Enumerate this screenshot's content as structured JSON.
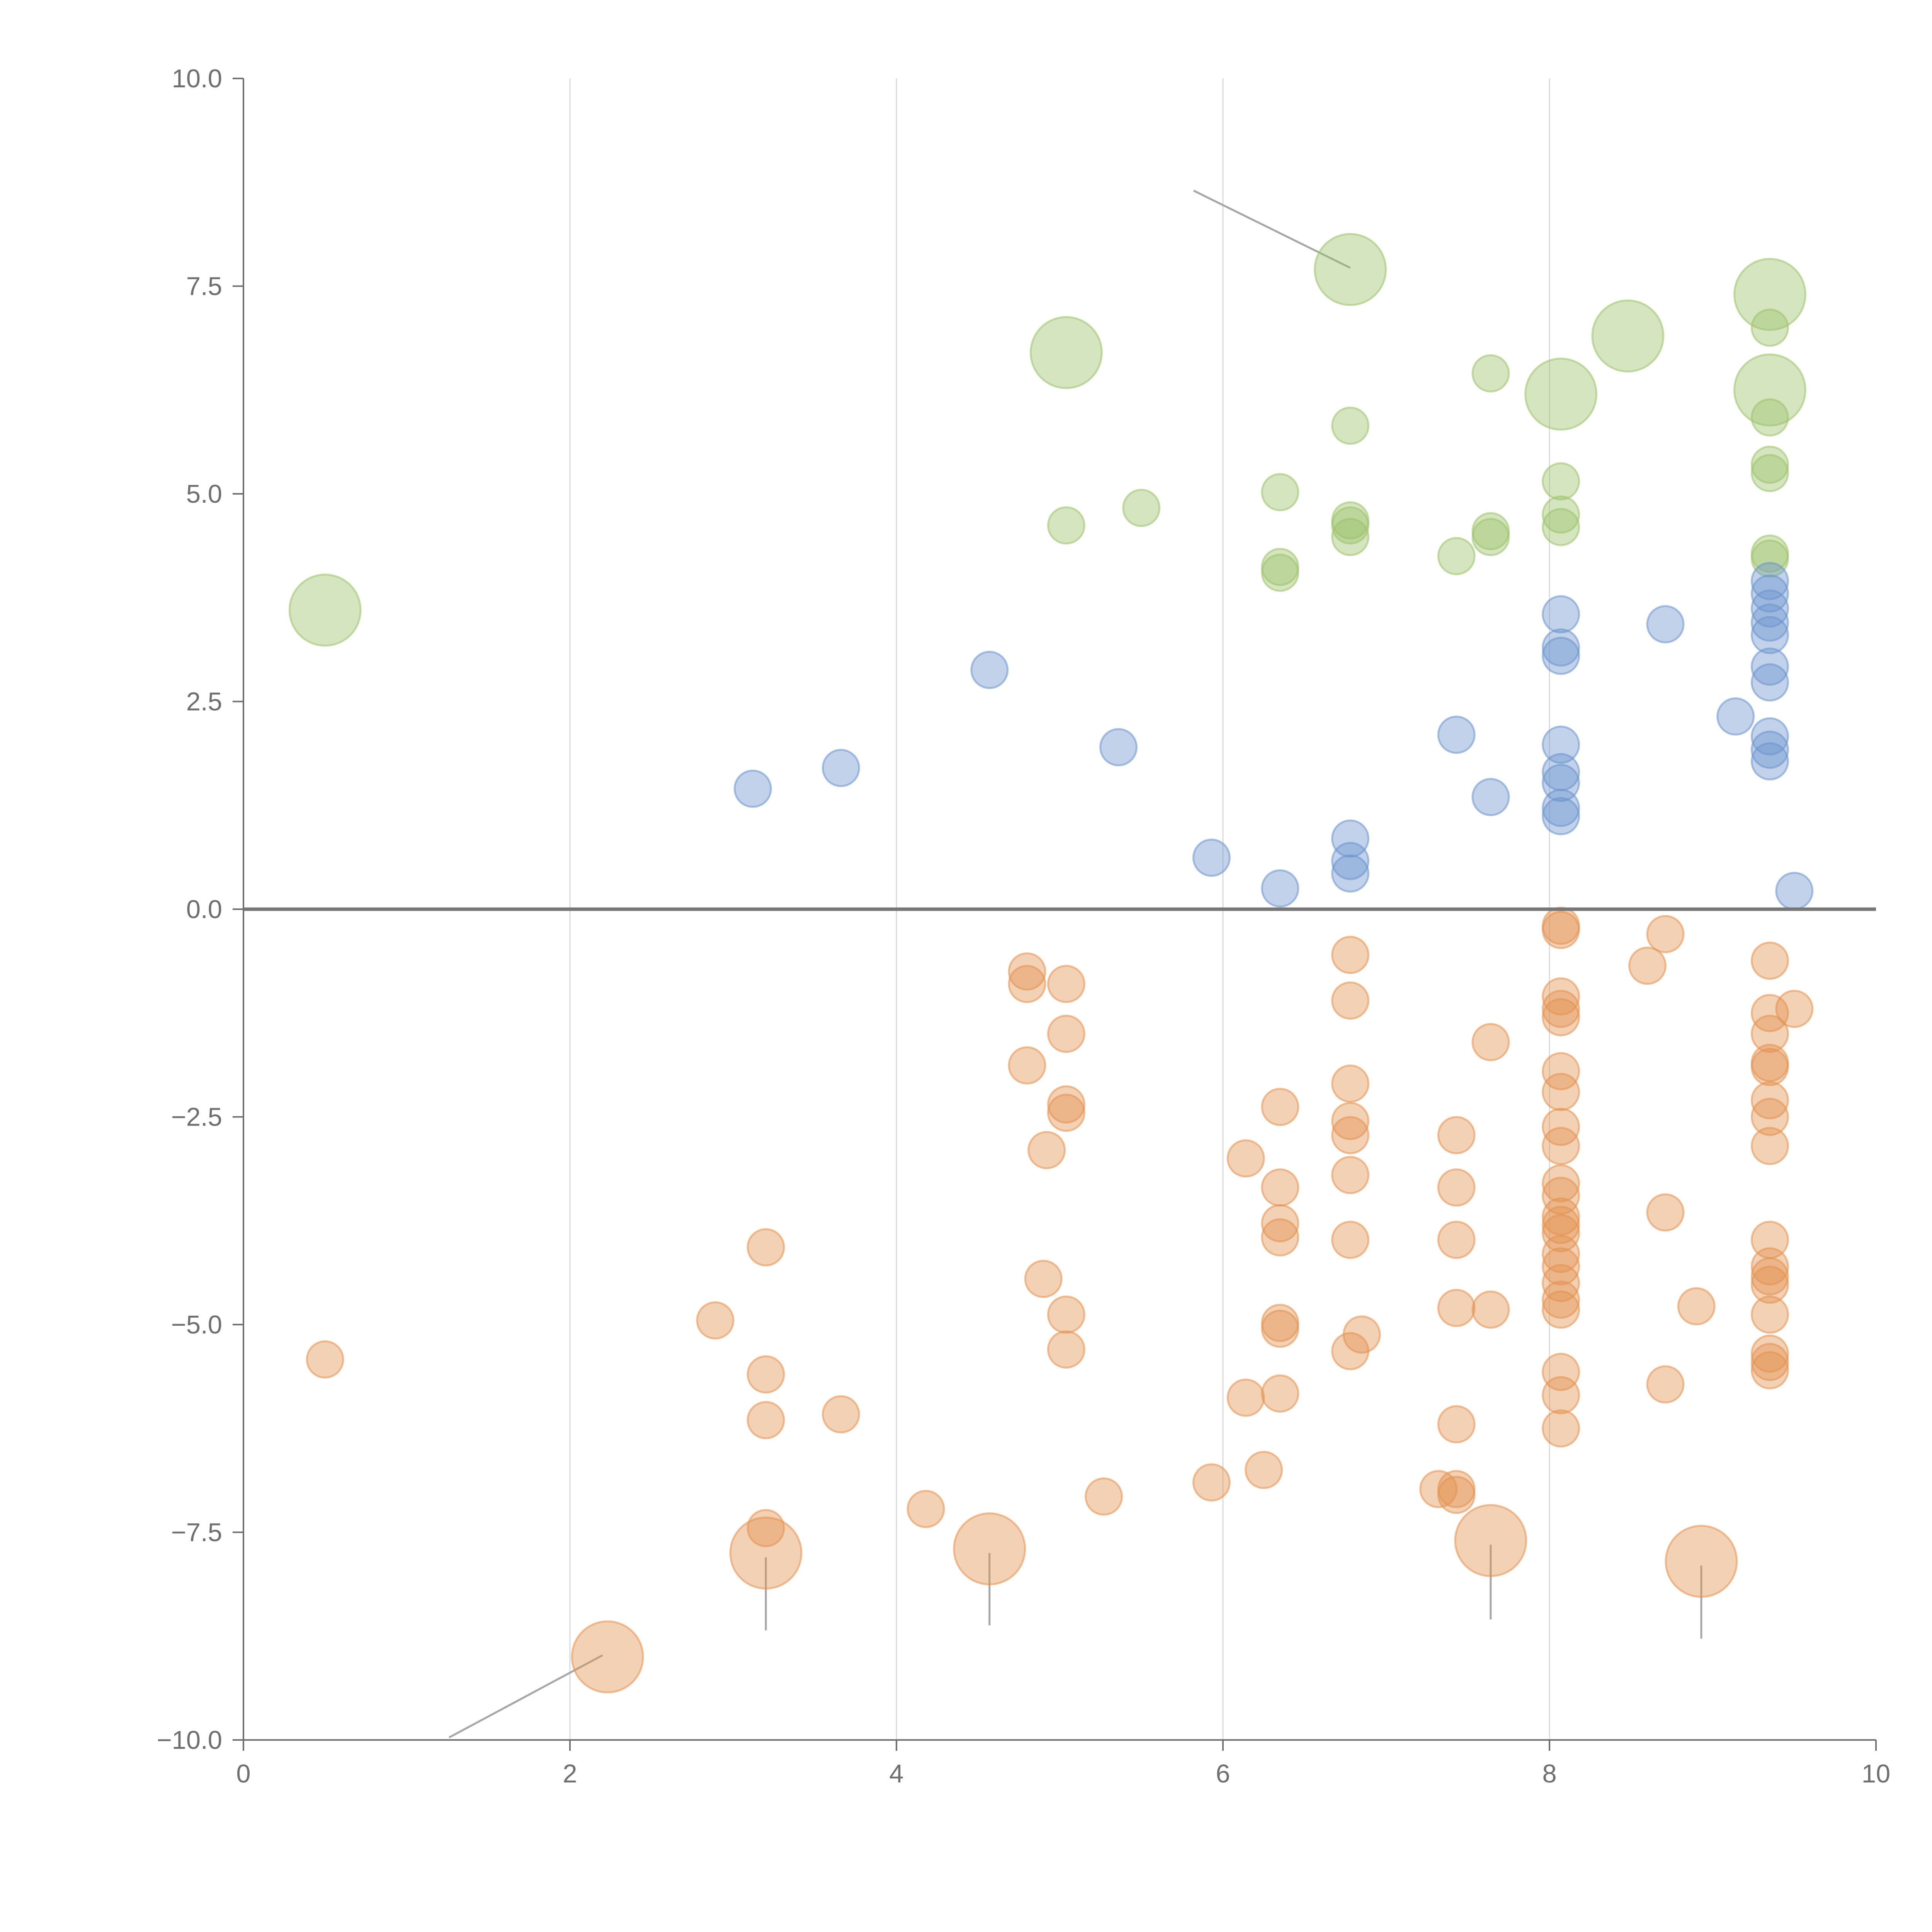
{
  "chart_data": {
    "type": "scatter",
    "title": "",
    "xlabel": "",
    "ylabel": "",
    "xlim": [
      0,
      10
    ],
    "ylim": [
      -10,
      10
    ],
    "x_ticks": [
      "0",
      "2",
      "4",
      "6",
      "8",
      "10"
    ],
    "y_ticks": [
      "10.0",
      "7.5",
      "5.0",
      "2.5",
      "0.0",
      "−2.5",
      "−5.0",
      "−7.5",
      "−10.0"
    ],
    "x_tick_values": [
      0,
      2,
      4,
      6,
      8,
      10
    ],
    "y_tick_values": [
      10,
      7.5,
      5,
      2.5,
      0,
      -2.5,
      -5,
      -7.5,
      -10
    ],
    "grid": "vertical",
    "reference_line_y": 0,
    "colors": {
      "green": "#9cc26a",
      "blue": "#6b93cc",
      "orange": "#e3924f",
      "axis": "#6f6f6f",
      "grid": "#d9d9d9",
      "leader": "#a6a6a6"
    },
    "series": [
      {
        "name": "green",
        "color": "#9cc26a",
        "points": [
          [
            0.5,
            3.6,
            2
          ],
          [
            6.78,
            7.7,
            2
          ],
          [
            5.04,
            6.7,
            2
          ],
          [
            8.48,
            6.9,
            2
          ],
          [
            9.35,
            7.4,
            2
          ],
          [
            8.07,
            6.2,
            2
          ],
          [
            9.35,
            6.25,
            2
          ],
          [
            9.35,
            7.0,
            1
          ],
          [
            7.64,
            6.45,
            1
          ],
          [
            6.78,
            5.82,
            1
          ],
          [
            9.35,
            5.92,
            1
          ],
          [
            8.07,
            5.15,
            1
          ],
          [
            9.35,
            5.35,
            1
          ],
          [
            9.35,
            5.25,
            1
          ],
          [
            6.35,
            5.02,
            1
          ],
          [
            5.5,
            4.83,
            1
          ],
          [
            8.07,
            4.75,
            1
          ],
          [
            6.78,
            4.68,
            1
          ],
          [
            6.78,
            4.62,
            1
          ],
          [
            5.04,
            4.62,
            1
          ],
          [
            8.07,
            4.6,
            1
          ],
          [
            7.64,
            4.55,
            1
          ],
          [
            7.64,
            4.48,
            1
          ],
          [
            6.78,
            4.48,
            1
          ],
          [
            9.35,
            4.28,
            1
          ],
          [
            9.35,
            4.22,
            1
          ],
          [
            7.43,
            4.25,
            1
          ],
          [
            6.35,
            4.12,
            1
          ],
          [
            6.35,
            4.05,
            1
          ]
        ]
      },
      {
        "name": "blue",
        "color": "#6b93cc",
        "points": [
          [
            9.35,
            3.95,
            1
          ],
          [
            9.35,
            3.8,
            1
          ],
          [
            9.35,
            3.62,
            1
          ],
          [
            8.07,
            3.55,
            1
          ],
          [
            9.35,
            3.45,
            1
          ],
          [
            8.71,
            3.43,
            1
          ],
          [
            9.35,
            3.3,
            1
          ],
          [
            8.07,
            3.15,
            1
          ],
          [
            8.07,
            3.05,
            1
          ],
          [
            9.35,
            2.92,
            1
          ],
          [
            4.57,
            2.88,
            1
          ],
          [
            9.35,
            2.73,
            1
          ],
          [
            9.14,
            2.32,
            1
          ],
          [
            7.43,
            2.1,
            1
          ],
          [
            9.35,
            2.08,
            1
          ],
          [
            8.07,
            1.98,
            1
          ],
          [
            5.36,
            1.95,
            1
          ],
          [
            9.35,
            1.92,
            1
          ],
          [
            9.35,
            1.78,
            1
          ],
          [
            3.66,
            1.7,
            1
          ],
          [
            8.07,
            1.65,
            1
          ],
          [
            8.07,
            1.52,
            1
          ],
          [
            3.12,
            1.45,
            1
          ],
          [
            7.64,
            1.35,
            1
          ],
          [
            8.07,
            1.22,
            1
          ],
          [
            8.07,
            1.12,
            1
          ],
          [
            6.78,
            0.85,
            1
          ],
          [
            5.93,
            0.62,
            1
          ],
          [
            6.78,
            0.58,
            1
          ],
          [
            6.78,
            0.43,
            1
          ],
          [
            6.35,
            0.25,
            1
          ],
          [
            9.5,
            0.22,
            1
          ]
        ]
      },
      {
        "name": "orange",
        "color": "#e3924f",
        "points": [
          [
            2.23,
            -9.0,
            2
          ],
          [
            3.2,
            -7.75,
            2
          ],
          [
            4.57,
            -7.7,
            2
          ],
          [
            7.64,
            -7.6,
            2
          ],
          [
            8.93,
            -7.85,
            2
          ],
          [
            8.07,
            -0.2,
            1
          ],
          [
            8.07,
            -0.25,
            1
          ],
          [
            8.71,
            -0.3,
            1
          ],
          [
            9.35,
            -0.62,
            1
          ],
          [
            6.78,
            -0.55,
            1
          ],
          [
            8.6,
            -0.68,
            1
          ],
          [
            4.8,
            -0.75,
            1
          ],
          [
            4.8,
            -0.9,
            1
          ],
          [
            5.04,
            -0.9,
            1
          ],
          [
            8.07,
            -1.05,
            1
          ],
          [
            8.07,
            -1.2,
            1
          ],
          [
            9.5,
            -1.2,
            1
          ],
          [
            9.35,
            -1.25,
            1
          ],
          [
            8.07,
            -1.3,
            1
          ],
          [
            6.78,
            -1.1,
            1
          ],
          [
            5.04,
            -1.5,
            1
          ],
          [
            9.35,
            -1.5,
            1
          ],
          [
            7.64,
            -1.6,
            1
          ],
          [
            9.35,
            -1.85,
            1
          ],
          [
            4.8,
            -1.88,
            1
          ],
          [
            9.35,
            -1.9,
            1
          ],
          [
            8.07,
            -1.95,
            1
          ],
          [
            6.78,
            -2.1,
            1
          ],
          [
            8.07,
            -2.2,
            1
          ],
          [
            9.35,
            -2.3,
            1
          ],
          [
            5.04,
            -2.35,
            1
          ],
          [
            6.35,
            -2.38,
            1
          ],
          [
            5.04,
            -2.45,
            1
          ],
          [
            6.78,
            -2.55,
            1
          ],
          [
            9.35,
            -2.5,
            1
          ],
          [
            8.07,
            -2.62,
            1
          ],
          [
            6.78,
            -2.72,
            1
          ],
          [
            7.43,
            -2.72,
            1
          ],
          [
            8.07,
            -2.85,
            1
          ],
          [
            9.35,
            -2.85,
            1
          ],
          [
            4.92,
            -2.9,
            1
          ],
          [
            6.14,
            -3.0,
            1
          ],
          [
            6.78,
            -3.2,
            1
          ],
          [
            8.07,
            -3.3,
            1
          ],
          [
            6.35,
            -3.35,
            1
          ],
          [
            7.43,
            -3.35,
            1
          ],
          [
            8.07,
            -3.45,
            1
          ],
          [
            8.71,
            -3.65,
            1
          ],
          [
            8.07,
            -3.7,
            1
          ],
          [
            6.35,
            -3.78,
            1
          ],
          [
            8.07,
            -3.8,
            1
          ],
          [
            8.07,
            -3.9,
            1
          ],
          [
            6.35,
            -3.95,
            1
          ],
          [
            6.78,
            -3.98,
            1
          ],
          [
            7.43,
            -3.98,
            1
          ],
          [
            9.35,
            -3.98,
            1
          ],
          [
            3.2,
            -4.07,
            1
          ],
          [
            8.07,
            -4.15,
            1
          ],
          [
            8.07,
            -4.3,
            1
          ],
          [
            9.35,
            -4.3,
            1
          ],
          [
            9.35,
            -4.42,
            1
          ],
          [
            4.9,
            -4.45,
            1
          ],
          [
            8.07,
            -4.5,
            1
          ],
          [
            9.35,
            -4.52,
            1
          ],
          [
            8.07,
            -4.7,
            1
          ],
          [
            7.43,
            -4.8,
            1
          ],
          [
            8.07,
            -4.82,
            1
          ],
          [
            7.64,
            -4.82,
            1
          ],
          [
            8.9,
            -4.78,
            1
          ],
          [
            5.04,
            -4.88,
            1
          ],
          [
            9.35,
            -4.88,
            1
          ],
          [
            2.89,
            -4.95,
            1
          ],
          [
            6.35,
            -4.98,
            1
          ],
          [
            6.35,
            -5.05,
            1
          ],
          [
            6.85,
            -5.12,
            1
          ],
          [
            5.04,
            -5.3,
            1
          ],
          [
            6.78,
            -5.32,
            1
          ],
          [
            9.35,
            -5.35,
            1
          ],
          [
            9.35,
            -5.45,
            1
          ],
          [
            0.5,
            -5.42,
            1
          ],
          [
            9.35,
            -5.55,
            1
          ],
          [
            8.07,
            -5.57,
            1
          ],
          [
            3.2,
            -5.6,
            1
          ],
          [
            8.71,
            -5.72,
            1
          ],
          [
            6.35,
            -5.83,
            1
          ],
          [
            8.07,
            -5.85,
            1
          ],
          [
            6.14,
            -5.88,
            1
          ],
          [
            3.66,
            -6.08,
            1
          ],
          [
            3.2,
            -6.15,
            1
          ],
          [
            7.43,
            -6.2,
            1
          ],
          [
            8.07,
            -6.25,
            1
          ],
          [
            6.25,
            -6.75,
            1
          ],
          [
            5.93,
            -6.9,
            1
          ],
          [
            7.32,
            -6.98,
            1
          ],
          [
            7.43,
            -6.98,
            1
          ],
          [
            7.43,
            -7.05,
            1
          ],
          [
            5.27,
            -7.07,
            1
          ],
          [
            4.18,
            -7.22,
            1
          ],
          [
            3.2,
            -7.45,
            1
          ]
        ]
      }
    ],
    "leader_lines": [
      [
        [
          5.82,
          8.65
        ],
        [
          6.78,
          7.72
        ]
      ],
      [
        [
          1.26,
          -9.97
        ],
        [
          2.2,
          -8.98
        ]
      ],
      [
        [
          3.2,
          -7.8
        ],
        [
          3.2,
          -8.68
        ]
      ],
      [
        [
          4.57,
          -7.75
        ],
        [
          4.57,
          -8.62
        ]
      ],
      [
        [
          7.64,
          -7.65
        ],
        [
          7.64,
          -8.55
        ]
      ],
      [
        [
          8.93,
          -7.9
        ],
        [
          8.93,
          -8.78
        ]
      ]
    ]
  }
}
